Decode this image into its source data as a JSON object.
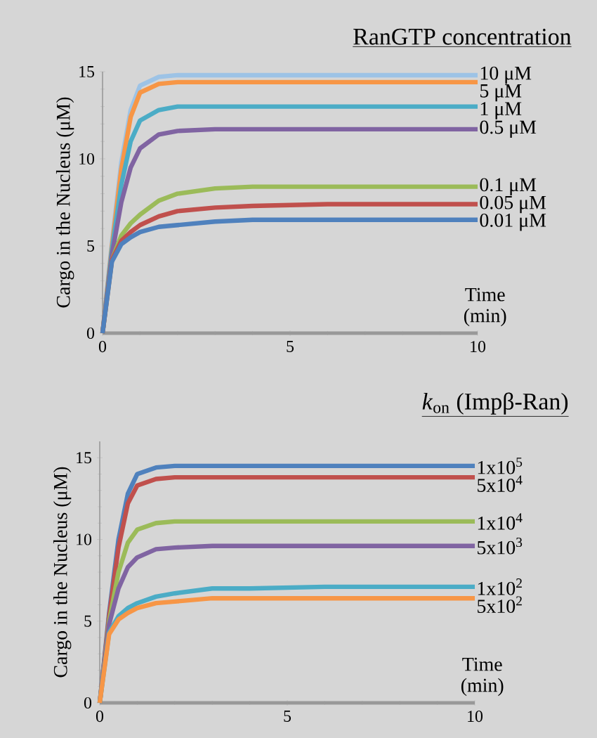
{
  "chart_data": [
    {
      "type": "line",
      "legend_title": "RanGTP concentration",
      "xlabel": "Time (min)",
      "ylabel": "Cargo in the Nucleus (μM)",
      "xlim": [
        0,
        10
      ],
      "ylim": [
        0,
        15
      ],
      "xticks": [
        0,
        5,
        10
      ],
      "yticks": [
        0,
        5,
        10,
        15
      ],
      "x": [
        0,
        0.25,
        0.5,
        0.75,
        1,
        1.5,
        2,
        3,
        4,
        6,
        10
      ],
      "series": [
        {
          "name": "10 μM",
          "color": "#9dc3e6",
          "values": [
            0,
            5.2,
            9.8,
            12.8,
            14.2,
            14.7,
            14.8,
            14.8,
            14.8,
            14.8,
            14.8
          ]
        },
        {
          "name": "5 μM",
          "color": "#f79646",
          "values": [
            0,
            5.0,
            9.4,
            12.4,
            13.8,
            14.3,
            14.4,
            14.4,
            14.4,
            14.4,
            14.4
          ]
        },
        {
          "name": "1 μM",
          "color": "#4bacc6",
          "values": [
            0,
            4.8,
            8.5,
            11.0,
            12.2,
            12.8,
            13.0,
            13.0,
            13.0,
            13.0,
            13.0
          ]
        },
        {
          "name": "0.5 μM",
          "color": "#8064a2",
          "values": [
            0,
            4.5,
            7.5,
            9.5,
            10.6,
            11.4,
            11.6,
            11.7,
            11.7,
            11.7,
            11.7
          ]
        },
        {
          "name": "0.1 μM",
          "color": "#9bbb59",
          "values": [
            0,
            4.2,
            5.6,
            6.3,
            6.8,
            7.6,
            8.0,
            8.3,
            8.4,
            8.4,
            8.4
          ]
        },
        {
          "name": "0.05 μM",
          "color": "#c0504d",
          "values": [
            0,
            4.2,
            5.3,
            5.8,
            6.2,
            6.7,
            7.0,
            7.2,
            7.3,
            7.4,
            7.4
          ]
        },
        {
          "name": "0.01 μM",
          "color": "#4f81bd",
          "values": [
            0,
            4.1,
            5.1,
            5.5,
            5.8,
            6.1,
            6.2,
            6.4,
            6.5,
            6.5,
            6.5
          ]
        }
      ]
    },
    {
      "type": "line",
      "legend_title": "*k*$_{on}$ (Impβ-Ran)",
      "xlabel": "Time (min)",
      "ylabel": "Cargo in the Nucleus (μM)",
      "xlim": [
        0,
        10
      ],
      "ylim": [
        0,
        16
      ],
      "xticks": [
        0,
        5,
        10
      ],
      "yticks": [
        0,
        5,
        10,
        15
      ],
      "x": [
        0,
        0.25,
        0.5,
        0.75,
        1,
        1.5,
        2,
        3,
        4,
        6,
        10
      ],
      "series": [
        {
          "name": "1x10$^{5}$",
          "color": "#4f81bd",
          "values": [
            0,
            5.5,
            10.0,
            12.8,
            14.0,
            14.4,
            14.5,
            14.5,
            14.5,
            14.5,
            14.5
          ]
        },
        {
          "name": "5x10$^{4}$",
          "color": "#c0504d",
          "values": [
            0,
            5.3,
            9.5,
            12.2,
            13.3,
            13.7,
            13.8,
            13.8,
            13.8,
            13.8,
            13.8
          ]
        },
        {
          "name": "1x10$^{4}$",
          "color": "#9bbb59",
          "values": [
            0,
            5.0,
            8.0,
            9.8,
            10.6,
            11.0,
            11.1,
            11.1,
            11.1,
            11.1,
            11.1
          ]
        },
        {
          "name": "5x10$^{3}$",
          "color": "#8064a2",
          "values": [
            0,
            4.8,
            7.0,
            8.3,
            8.9,
            9.4,
            9.5,
            9.6,
            9.6,
            9.6,
            9.6
          ]
        },
        {
          "name": "1x10$^{2}$",
          "color": "#4bacc6",
          "values": [
            0,
            4.3,
            5.3,
            5.8,
            6.1,
            6.5,
            6.7,
            7.0,
            7.0,
            7.1,
            7.1
          ]
        },
        {
          "name": "5x10$^{2}$",
          "color": "#f79646",
          "values": [
            0,
            4.2,
            5.1,
            5.5,
            5.8,
            6.1,
            6.2,
            6.4,
            6.4,
            6.4,
            6.4
          ]
        }
      ]
    }
  ]
}
